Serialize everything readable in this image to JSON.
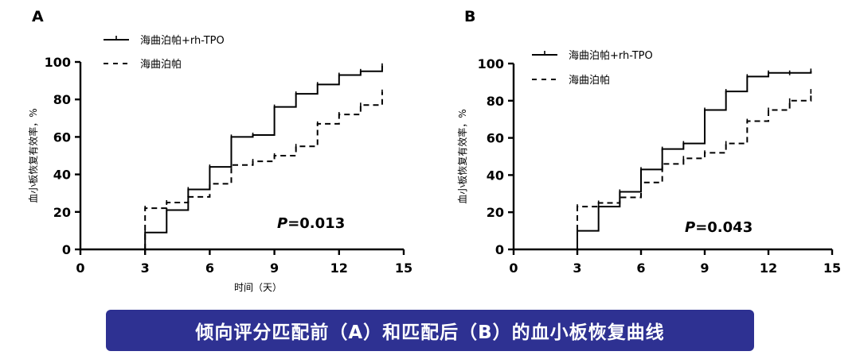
{
  "chart_data": [
    {
      "type": "line",
      "panel_label": "A",
      "xlabel": "时间（天）",
      "ylabel": "血小板恢复有效率，%",
      "xlim": [
        0,
        15
      ],
      "ylim": [
        0,
        100
      ],
      "xticks": [
        "0",
        "3",
        "6",
        "9",
        "12",
        "15"
      ],
      "yticks": [
        "0",
        "20",
        "40",
        "60",
        "80",
        "100"
      ],
      "annotation": {
        "italic": "P",
        "text": "=0.013"
      },
      "legend_position": "top-left",
      "series": [
        {
          "name": "海曲泊帕+rh-TPO",
          "style": "solid",
          "x": [
            3,
            4,
            5,
            6,
            7,
            8,
            9,
            10,
            11,
            12,
            13,
            14
          ],
          "y": [
            9,
            21,
            32,
            44,
            60,
            61,
            76,
            83,
            88,
            93,
            95,
            98
          ]
        },
        {
          "name": "海曲泊帕",
          "style": "dashed",
          "x": [
            3,
            4,
            5,
            6,
            7,
            8,
            9,
            10,
            11,
            12,
            13,
            14
          ],
          "y": [
            22,
            25,
            28,
            35,
            45,
            47,
            50,
            55,
            67,
            72,
            77,
            84
          ]
        }
      ]
    },
    {
      "type": "line",
      "panel_label": "B",
      "xlabel": "",
      "ylabel": "血小板恢复有效率，%",
      "xlim": [
        0,
        15
      ],
      "ylim": [
        0,
        100
      ],
      "xticks": [
        "0",
        "3",
        "6",
        "9",
        "12",
        "15"
      ],
      "yticks": [
        "0",
        "20",
        "40",
        "60",
        "80",
        "100"
      ],
      "annotation": {
        "italic": "P",
        "text": "=0.043"
      },
      "legend_position": "top-left",
      "series": [
        {
          "name": "海曲泊帕+rh-TPO",
          "style": "solid",
          "x": [
            3,
            4,
            5,
            6,
            7,
            8,
            9,
            10,
            11,
            12,
            13,
            14
          ],
          "y": [
            10,
            23,
            31,
            43,
            54,
            57,
            75,
            85,
            93,
            95,
            95,
            96
          ]
        },
        {
          "name": "海曲泊帕",
          "style": "dashed",
          "x": [
            3,
            4,
            5,
            6,
            7,
            8,
            9,
            10,
            11,
            12,
            13,
            14
          ],
          "y": [
            23,
            25,
            28,
            36,
            46,
            49,
            52,
            57,
            69,
            75,
            80,
            85
          ]
        }
      ]
    }
  ],
  "caption": "倾向评分匹配前（A）和匹配后（B）的血小板恢复曲线",
  "colors": {
    "line": "#000000",
    "caption_bg": "#2e3192",
    "caption_text": "#ffffff"
  }
}
